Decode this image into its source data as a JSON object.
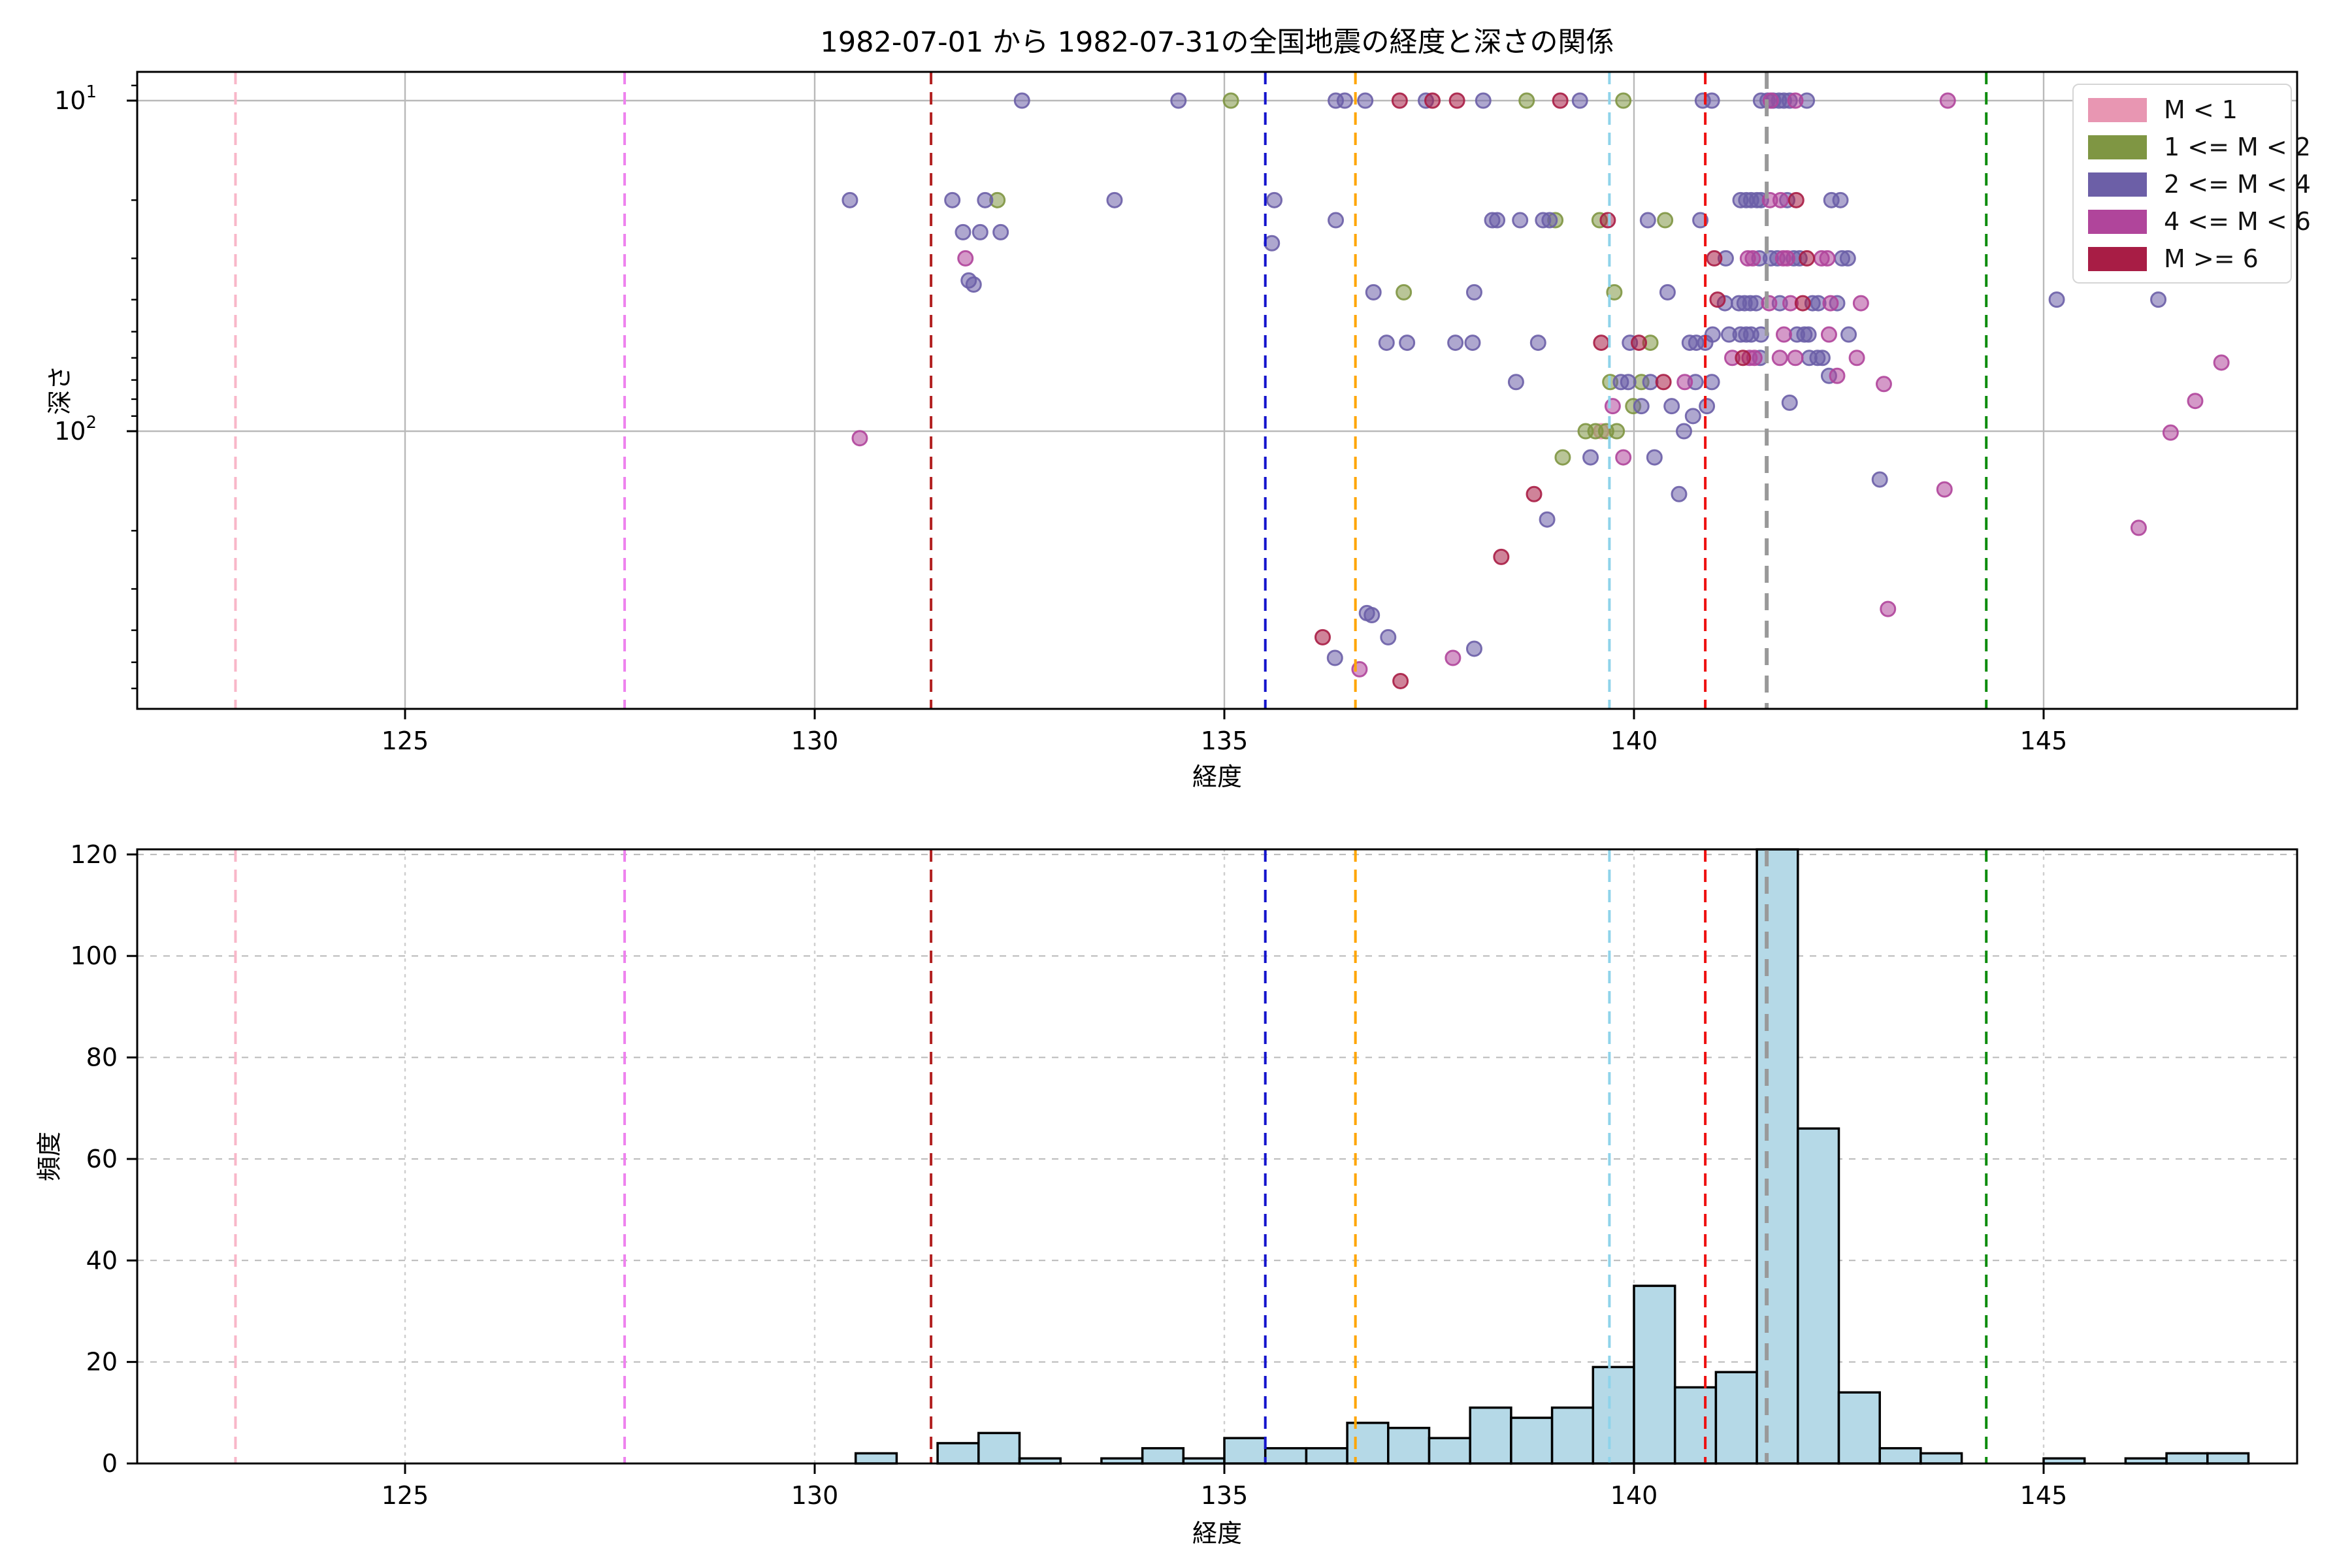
{
  "title": "1982-07-01 から 1982-07-31の全国地震の経度と深さの関係",
  "chart_data": [
    {
      "type": "scatter",
      "title": "1982-07-01 から 1982-07-31の全国地震の経度と深さの関係",
      "xlabel": "経度",
      "ylabel": "深さ",
      "x_range": [
        121.73,
        148.09
      ],
      "y_scale": "log-inverted",
      "y_range": [
        8.2,
        692
      ],
      "xticks": [
        125,
        130,
        135,
        140,
        145
      ],
      "yticks_major": [
        10,
        100
      ],
      "yticks_minor": [
        9,
        20,
        30,
        40,
        50,
        60,
        70,
        80,
        90,
        200,
        300,
        400,
        500,
        600
      ],
      "grid": "solid gray at major ticks",
      "legend_position": "upper right",
      "series": [
        {
          "name": "M < 1",
          "color": "#e896b2",
          "points": [
            [
              139.6,
              100
            ]
          ]
        },
        {
          "name": "1 <= M < 2",
          "color": "#7f9643",
          "points": [
            [
              135.08,
              10
            ],
            [
              132.23,
              20
            ],
            [
              138.69,
              10
            ],
            [
              139.87,
              10
            ],
            [
              139.04,
              23
            ],
            [
              139.58,
              23
            ],
            [
              140.38,
              23
            ],
            [
              137.19,
              38
            ],
            [
              139.76,
              38
            ],
            [
              140.2,
              54
            ],
            [
              139.71,
              71
            ],
            [
              140.09,
              71
            ],
            [
              139.99,
              84
            ],
            [
              139.41,
              100
            ],
            [
              139.53,
              100
            ],
            [
              139.66,
              100
            ],
            [
              139.79,
              100
            ],
            [
              139.13,
              120
            ]
          ]
        },
        {
          "name": "2 <= M < 4",
          "color": "#6c5fa7",
          "points": [
            [
              132.53,
              10
            ],
            [
              134.44,
              10
            ],
            [
              130.43,
              20
            ],
            [
              131.68,
              20
            ],
            [
              132.08,
              20
            ],
            [
              133.66,
              20
            ],
            [
              135.61,
              20
            ],
            [
              131.81,
              25
            ],
            [
              132.02,
              25
            ],
            [
              132.27,
              25
            ],
            [
              135.58,
              27
            ],
            [
              131.88,
              35
            ],
            [
              131.94,
              36
            ],
            [
              136.36,
              10
            ],
            [
              136.47,
              10
            ],
            [
              136.72,
              10
            ],
            [
              137.46,
              10
            ],
            [
              138.16,
              10
            ],
            [
              139.34,
              10
            ],
            [
              140.84,
              10
            ],
            [
              140.95,
              10
            ],
            [
              136.36,
              23
            ],
            [
              138.27,
              23
            ],
            [
              138.33,
              23
            ],
            [
              138.61,
              23
            ],
            [
              138.89,
              23
            ],
            [
              138.97,
              23
            ],
            [
              140.17,
              23
            ],
            [
              140.81,
              23
            ],
            [
              136.82,
              38
            ],
            [
              138.05,
              38
            ],
            [
              140.41,
              38
            ],
            [
              136.98,
              54
            ],
            [
              137.23,
              54
            ],
            [
              137.82,
              54
            ],
            [
              138.03,
              54
            ],
            [
              138.83,
              54
            ],
            [
              139.95,
              54
            ],
            [
              140.68,
              54
            ],
            [
              140.76,
              54
            ],
            [
              140.87,
              54
            ],
            [
              138.56,
              71
            ],
            [
              139.84,
              71
            ],
            [
              139.93,
              71
            ],
            [
              140.2,
              71
            ],
            [
              140.75,
              71
            ],
            [
              140.95,
              71
            ],
            [
              140.09,
              84
            ],
            [
              140.46,
              84
            ],
            [
              140.89,
              84
            ],
            [
              140.72,
              90
            ],
            [
              140.61,
              100
            ],
            [
              139.47,
              120
            ],
            [
              140.25,
              120
            ],
            [
              140.55,
              155
            ],
            [
              138.94,
              185
            ],
            [
              136.74,
              355
            ],
            [
              136.8,
              360
            ],
            [
              137.0,
              420
            ],
            [
              136.35,
              485
            ],
            [
              138.05,
              455
            ],
            [
              141.55,
              10
            ],
            [
              141.63,
              10
            ],
            [
              141.7,
              10
            ],
            [
              141.77,
              10
            ],
            [
              141.83,
              10
            ],
            [
              141.9,
              10
            ],
            [
              142.11,
              10
            ],
            [
              141.3,
              20
            ],
            [
              141.37,
              20
            ],
            [
              141.43,
              20
            ],
            [
              141.5,
              20
            ],
            [
              141.55,
              20
            ],
            [
              141.87,
              20
            ],
            [
              142.41,
              20
            ],
            [
              142.52,
              20
            ],
            [
              141.12,
              30
            ],
            [
              141.53,
              30
            ],
            [
              141.67,
              30
            ],
            [
              141.75,
              30
            ],
            [
              141.95,
              30
            ],
            [
              142.02,
              30
            ],
            [
              142.54,
              30
            ],
            [
              142.61,
              30
            ],
            [
              141.11,
              41
            ],
            [
              141.28,
              41
            ],
            [
              141.35,
              41
            ],
            [
              141.42,
              41
            ],
            [
              141.49,
              41
            ],
            [
              141.78,
              41
            ],
            [
              142.18,
              41
            ],
            [
              142.25,
              41
            ],
            [
              142.48,
              41
            ],
            [
              140.96,
              51
            ],
            [
              141.16,
              51
            ],
            [
              141.3,
              51
            ],
            [
              141.37,
              51
            ],
            [
              141.43,
              51
            ],
            [
              141.55,
              51
            ],
            [
              141.99,
              51
            ],
            [
              142.08,
              51
            ],
            [
              142.13,
              51
            ],
            [
              142.62,
              51
            ],
            [
              141.54,
              60
            ],
            [
              142.14,
              60
            ],
            [
              142.24,
              60
            ],
            [
              142.3,
              60
            ],
            [
              142.38,
              68
            ],
            [
              141.9,
              82
            ],
            [
              143.0,
              140
            ],
            [
              145.16,
              40
            ],
            [
              146.4,
              40
            ]
          ]
        },
        {
          "name": "4 <= M < 6",
          "color": "#b0459b",
          "points": [
            [
              131.84,
              30
            ],
            [
              130.55,
              105
            ],
            [
              140.62,
              71
            ],
            [
              139.74,
              84
            ],
            [
              139.87,
              120
            ],
            [
              137.79,
              485
            ],
            [
              136.65,
              525
            ],
            [
              141.67,
              10
            ],
            [
              141.97,
              10
            ],
            [
              143.83,
              10
            ],
            [
              141.66,
              20
            ],
            [
              141.79,
              20
            ],
            [
              141.39,
              30
            ],
            [
              141.45,
              30
            ],
            [
              141.82,
              30
            ],
            [
              141.87,
              30
            ],
            [
              142.29,
              30
            ],
            [
              142.36,
              30
            ],
            [
              141.65,
              41
            ],
            [
              141.91,
              41
            ],
            [
              142.4,
              41
            ],
            [
              142.77,
              41
            ],
            [
              141.83,
              51
            ],
            [
              142.38,
              51
            ],
            [
              141.2,
              60
            ],
            [
              141.41,
              60
            ],
            [
              141.47,
              60
            ],
            [
              141.78,
              60
            ],
            [
              141.97,
              60
            ],
            [
              142.72,
              60
            ],
            [
              142.48,
              68
            ],
            [
              143.05,
              72
            ],
            [
              143.79,
              150
            ],
            [
              143.1,
              345
            ],
            [
              147.17,
              62
            ],
            [
              146.85,
              81
            ],
            [
              146.55,
              101
            ],
            [
              146.16,
              196
            ]
          ]
        },
        {
          "name": "M >= 6",
          "color": "#a81d45",
          "points": [
            [
              137.14,
              10
            ],
            [
              137.54,
              10
            ],
            [
              137.84,
              10
            ],
            [
              139.1,
              10
            ],
            [
              139.68,
              23
            ],
            [
              141.02,
              40
            ],
            [
              139.6,
              54
            ],
            [
              140.06,
              54
            ],
            [
              140.36,
              71
            ],
            [
              138.78,
              155
            ],
            [
              138.38,
              240
            ],
            [
              136.2,
              420
            ],
            [
              137.15,
              570
            ],
            [
              141.98,
              20
            ],
            [
              140.98,
              30
            ],
            [
              142.11,
              30
            ],
            [
              142.06,
              41
            ],
            [
              141.33,
              60
            ]
          ]
        }
      ]
    },
    {
      "type": "bar",
      "xlabel": "経度",
      "ylabel": "頻度",
      "bin_start": 130.5,
      "bin_width": 0.5,
      "bin_starts": [
        130.5,
        131.0,
        131.5,
        132.0,
        132.5,
        133.0,
        133.5,
        134.0,
        134.5,
        135.0,
        135.5,
        136.0,
        136.5,
        137.0,
        137.5,
        138.0,
        138.5,
        139.0,
        139.5,
        140.0,
        140.5,
        141.0,
        141.5,
        142.0,
        142.5,
        143.0,
        143.5,
        144.0,
        144.5,
        145.0,
        145.5,
        146.0,
        146.5,
        147.0
      ],
      "counts": [
        2,
        0,
        4,
        6,
        1,
        0,
        1,
        3,
        1,
        5,
        3,
        3,
        8,
        7,
        5,
        11,
        9,
        11,
        19,
        35,
        15,
        18,
        121,
        66,
        14,
        3,
        2,
        0,
        0,
        1,
        0,
        1,
        2,
        2
      ],
      "bar_color": "#b5d9e7",
      "bar_edge_color": "#000000",
      "xticks": [
        125,
        130,
        135,
        140,
        145
      ],
      "yticks": [
        0,
        20,
        40,
        60,
        80,
        100,
        120
      ],
      "ylim": [
        0,
        121
      ],
      "x_range": [
        121.73,
        148.09
      ],
      "grid": "dashed horizontal at yticks, dotted vertical at xticks"
    }
  ],
  "vlines": [
    {
      "x": 122.93,
      "color": "#f8b7c9"
    },
    {
      "x": 127.68,
      "color": "#ee82ee"
    },
    {
      "x": 131.42,
      "color": "#b22222"
    },
    {
      "x": 135.5,
      "color": "#1414cc"
    },
    {
      "x": 136.6,
      "color": "#ffa500"
    },
    {
      "x": 139.7,
      "color": "#8ed3ea"
    },
    {
      "x": 140.87,
      "color": "#ee1111"
    },
    {
      "x": 141.62,
      "color": "#999999",
      "thick": true
    },
    {
      "x": 144.3,
      "color": "#0d8c0d"
    }
  ],
  "legend": {
    "items": [
      {
        "label": "M < 1",
        "color": "#e896b2"
      },
      {
        "label": "1 <= M < 2",
        "color": "#7f9643"
      },
      {
        "label": "2 <= M < 4",
        "color": "#6c5fa7"
      },
      {
        "label": "4 <= M < 6",
        "color": "#b0459b"
      },
      {
        "label": "M >= 6",
        "color": "#a81d45"
      }
    ]
  },
  "labels": {
    "scatter_xlabel": "経度",
    "scatter_ylabel": "深さ",
    "hist_xlabel": "経度",
    "hist_ylabel": "頻度"
  }
}
